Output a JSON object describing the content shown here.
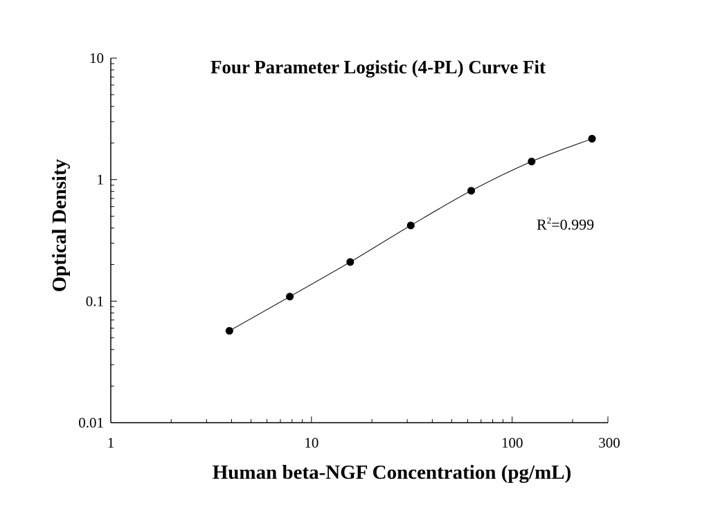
{
  "chart_data": {
    "type": "scatter",
    "title": "Four Parameter Logistic (4-PL) Curve Fit",
    "xlabel": "Human beta-NGF Concentration (pg/mL)",
    "ylabel": "Optical Density",
    "xscale": "log",
    "yscale": "log",
    "xlim": [
      1,
      300
    ],
    "ylim": [
      0.01,
      10
    ],
    "xticks": [
      {
        "value": 1,
        "label": "1"
      },
      {
        "value": 10,
        "label": "10"
      },
      {
        "value": 100,
        "label": "100"
      },
      {
        "value": 300,
        "label": "300"
      }
    ],
    "yticks": [
      {
        "value": 0.01,
        "label": "0.01"
      },
      {
        "value": 0.1,
        "label": "0.1"
      },
      {
        "value": 1,
        "label": "1"
      },
      {
        "value": 10,
        "label": "10"
      }
    ],
    "grid": false,
    "series": [
      {
        "x": [
          3.9,
          7.8,
          15.6,
          31.25,
          62.5,
          125,
          250
        ],
        "y": [
          0.057,
          0.109,
          0.21,
          0.42,
          0.81,
          1.41,
          2.17
        ],
        "marker": "filled-circle",
        "fit": "4-PL curve",
        "color": "#000000"
      }
    ],
    "annotation": {
      "r2_prefix": "R",
      "r2_sup": "2",
      "r2_value": "=0.999"
    }
  }
}
